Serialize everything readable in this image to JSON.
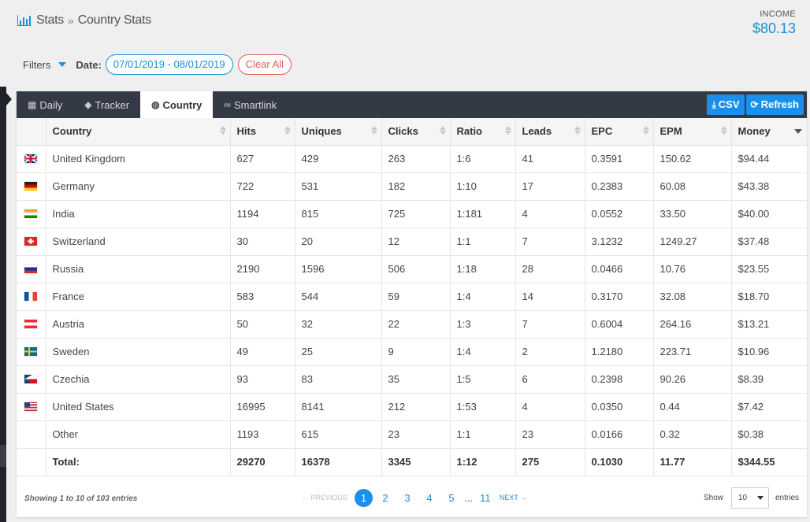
{
  "breadcrumb": {
    "root": "Stats",
    "separator": "»",
    "current": "Country Stats"
  },
  "income": {
    "label": "INCOME",
    "value": "$80.13"
  },
  "filters": {
    "label": "Filters",
    "date_label": "Date:",
    "date_range": "07/01/2019 - 08/01/2019",
    "clear_label": "Clear All"
  },
  "tabs": [
    {
      "label": "Daily",
      "icon": "calendar-icon",
      "active": false
    },
    {
      "label": "Tracker",
      "icon": "tag-icon",
      "active": false
    },
    {
      "label": "Country",
      "icon": "globe-icon",
      "active": true
    },
    {
      "label": "Smartlink",
      "icon": "link-icon",
      "active": false
    }
  ],
  "actions": {
    "csv_label": "CSV",
    "refresh_label": "Refresh"
  },
  "table": {
    "columns": [
      "Country",
      "Hits",
      "Uniques",
      "Clicks",
      "Ratio",
      "Leads",
      "EPC",
      "EPM",
      "Money"
    ],
    "sorted_column": "Money",
    "rows": [
      {
        "flag": "gb",
        "country": "United Kingdom",
        "hits": "627",
        "uniques": "429",
        "clicks": "263",
        "ratio": "1:6",
        "leads": "41",
        "epc": "0.3591",
        "epm": "150.62",
        "money": "$94.44"
      },
      {
        "flag": "de",
        "country": "Germany",
        "hits": "722",
        "uniques": "531",
        "clicks": "182",
        "ratio": "1:10",
        "leads": "17",
        "epc": "0.2383",
        "epm": "60.08",
        "money": "$43.38"
      },
      {
        "flag": "in",
        "country": "India",
        "hits": "1194",
        "uniques": "815",
        "clicks": "725",
        "ratio": "1:181",
        "leads": "4",
        "epc": "0.0552",
        "epm": "33.50",
        "money": "$40.00"
      },
      {
        "flag": "ch",
        "country": "Switzerland",
        "hits": "30",
        "uniques": "20",
        "clicks": "12",
        "ratio": "1:1",
        "leads": "7",
        "epc": "3.1232",
        "epm": "1249.27",
        "money": "$37.48"
      },
      {
        "flag": "ru",
        "country": "Russia",
        "hits": "2190",
        "uniques": "1596",
        "clicks": "506",
        "ratio": "1:18",
        "leads": "28",
        "epc": "0.0466",
        "epm": "10.76",
        "money": "$23.55"
      },
      {
        "flag": "fr",
        "country": "France",
        "hits": "583",
        "uniques": "544",
        "clicks": "59",
        "ratio": "1:4",
        "leads": "14",
        "epc": "0.3170",
        "epm": "32.08",
        "money": "$18.70"
      },
      {
        "flag": "at",
        "country": "Austria",
        "hits": "50",
        "uniques": "32",
        "clicks": "22",
        "ratio": "1:3",
        "leads": "7",
        "epc": "0.6004",
        "epm": "264.16",
        "money": "$13.21"
      },
      {
        "flag": "se",
        "country": "Sweden",
        "hits": "49",
        "uniques": "25",
        "clicks": "9",
        "ratio": "1:4",
        "leads": "2",
        "epc": "1.2180",
        "epm": "223.71",
        "money": "$10.96"
      },
      {
        "flag": "cz",
        "country": "Czechia",
        "hits": "93",
        "uniques": "83",
        "clicks": "35",
        "ratio": "1:5",
        "leads": "6",
        "epc": "0.2398",
        "epm": "90.26",
        "money": "$8.39"
      },
      {
        "flag": "us",
        "country": "United States",
        "hits": "16995",
        "uniques": "8141",
        "clicks": "212",
        "ratio": "1:53",
        "leads": "4",
        "epc": "0.0350",
        "epm": "0.44",
        "money": "$7.42"
      },
      {
        "flag": "",
        "country": "Other",
        "hits": "1193",
        "uniques": "615",
        "clicks": "23",
        "ratio": "1:1",
        "leads": "23",
        "epc": "0.0166",
        "epm": "0.32",
        "money": "$0.38"
      }
    ],
    "total": {
      "label": "Total:",
      "hits": "29270",
      "uniques": "16378",
      "clicks": "3345",
      "ratio": "1:12",
      "leads": "275",
      "epc": "0.1030",
      "epm": "11.77",
      "money": "$344.55"
    }
  },
  "footer": {
    "info": "Showing 1 to 10 of 103 entries",
    "prev_label": "← PREVIOUS",
    "pages": [
      "1",
      "2",
      "3",
      "4",
      "5"
    ],
    "ellipsis": "...",
    "last_page": "11",
    "next_label": "NEXT →",
    "current_page": "1",
    "show_label": "Show",
    "page_size": "10",
    "entries_label": "entries"
  },
  "colors": {
    "accent": "#1a90ea",
    "tabbar": "#333a45",
    "danger": "#e25b5b"
  }
}
